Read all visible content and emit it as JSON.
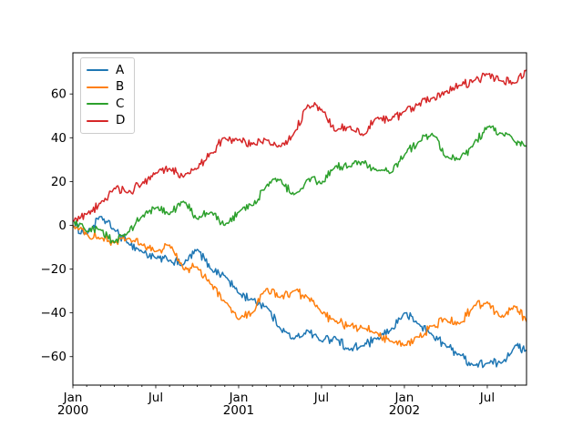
{
  "figure": {
    "background": "#ffffff",
    "frame_color": "#000000"
  },
  "legend": {
    "position": "upper left",
    "entries": [
      {
        "label": "A",
        "color": "#1f77b4"
      },
      {
        "label": "B",
        "color": "#ff7f0e"
      },
      {
        "label": "C",
        "color": "#2ca02c"
      },
      {
        "label": "D",
        "color": "#d62728"
      }
    ]
  },
  "chart_data": {
    "type": "line",
    "title": "",
    "xlabel": "",
    "ylabel": "",
    "grid": false,
    "legend_position": "upper left",
    "ylim": [
      -73,
      78.8
    ],
    "yticks": [
      -60,
      -40,
      -20,
      0,
      20,
      40,
      60
    ],
    "ytick_labels": [
      "−60",
      "−40",
      "−20",
      "0",
      "20",
      "40",
      "60"
    ],
    "x_total_months": 32.84,
    "xticks": [
      {
        "month_index": 0,
        "label": "Jan",
        "year": "2000"
      },
      {
        "month_index": 6,
        "label": "Jul",
        "year": ""
      },
      {
        "month_index": 12,
        "label": "Jan",
        "year": "2001"
      },
      {
        "month_index": 18,
        "label": "Jul",
        "year": ""
      },
      {
        "month_index": 24,
        "label": "Jan",
        "year": "2002"
      },
      {
        "month_index": 30,
        "label": "Jul",
        "year": ""
      }
    ],
    "x_dates": [
      "2000-01-01",
      "2000-02-01",
      "2000-03-01",
      "2000-04-01",
      "2000-05-01",
      "2000-06-01",
      "2000-07-01",
      "2000-08-01",
      "2000-09-01",
      "2000-10-01",
      "2000-11-01",
      "2000-12-01",
      "2001-01-01",
      "2001-02-01",
      "2001-03-01",
      "2001-04-01",
      "2001-05-01",
      "2001-06-01",
      "2001-07-01",
      "2001-08-01",
      "2001-09-01",
      "2001-10-01",
      "2001-11-01",
      "2001-12-01",
      "2002-01-01",
      "2002-02-01",
      "2002-03-01",
      "2002-04-01",
      "2002-05-01",
      "2002-06-01",
      "2002-07-01",
      "2002-08-01",
      "2002-09-01",
      "2002-09-26"
    ],
    "x_months": [
      0,
      1,
      2,
      3,
      4,
      5,
      6,
      7,
      8,
      9,
      10,
      11,
      12,
      13,
      14,
      15,
      16,
      17,
      18,
      19,
      20,
      21,
      22,
      23,
      24,
      25,
      26,
      27,
      28,
      29,
      30,
      31,
      32,
      32.84
    ],
    "series": [
      {
        "name": "A",
        "color": "#1f77b4",
        "values": [
          0,
          -4,
          4,
          -2,
          -8,
          -12,
          -15,
          -16,
          -18,
          -11,
          -20,
          -23,
          -31,
          -34,
          -37,
          -47,
          -52,
          -48,
          -53,
          -51,
          -57,
          -55,
          -52,
          -48,
          -40,
          -45,
          -50,
          -55,
          -59,
          -64,
          -63,
          -63,
          -55,
          -57
        ]
      },
      {
        "name": "B",
        "color": "#ff7f0e",
        "values": [
          0,
          -4,
          -6,
          -8,
          -6,
          -9,
          -12,
          -9,
          -20,
          -19,
          -27,
          -35,
          -43,
          -40,
          -29,
          -33,
          -30,
          -33,
          -40,
          -44,
          -46,
          -47,
          -49,
          -53,
          -55,
          -51,
          -46,
          -43,
          -45,
          -37,
          -35,
          -42,
          -37,
          -44
        ]
      },
      {
        "name": "C",
        "color": "#2ca02c",
        "values": [
          2,
          -3,
          -2,
          -8,
          -3,
          4,
          8,
          5,
          11,
          3,
          6,
          0,
          6,
          9,
          18,
          21,
          14,
          21,
          19,
          27,
          27,
          29,
          25,
          24,
          32,
          38,
          42,
          31,
          30,
          37,
          45,
          42,
          38,
          36
        ]
      },
      {
        "name": "D",
        "color": "#d62728",
        "values": [
          2,
          5,
          10,
          17,
          15,
          19,
          24,
          26,
          22,
          26,
          33,
          40,
          39,
          37,
          39,
          36,
          42,
          55,
          53,
          43,
          45,
          41,
          49,
          48,
          52,
          55,
          58,
          61,
          64,
          66,
          69,
          66,
          65,
          71
        ]
      }
    ]
  }
}
